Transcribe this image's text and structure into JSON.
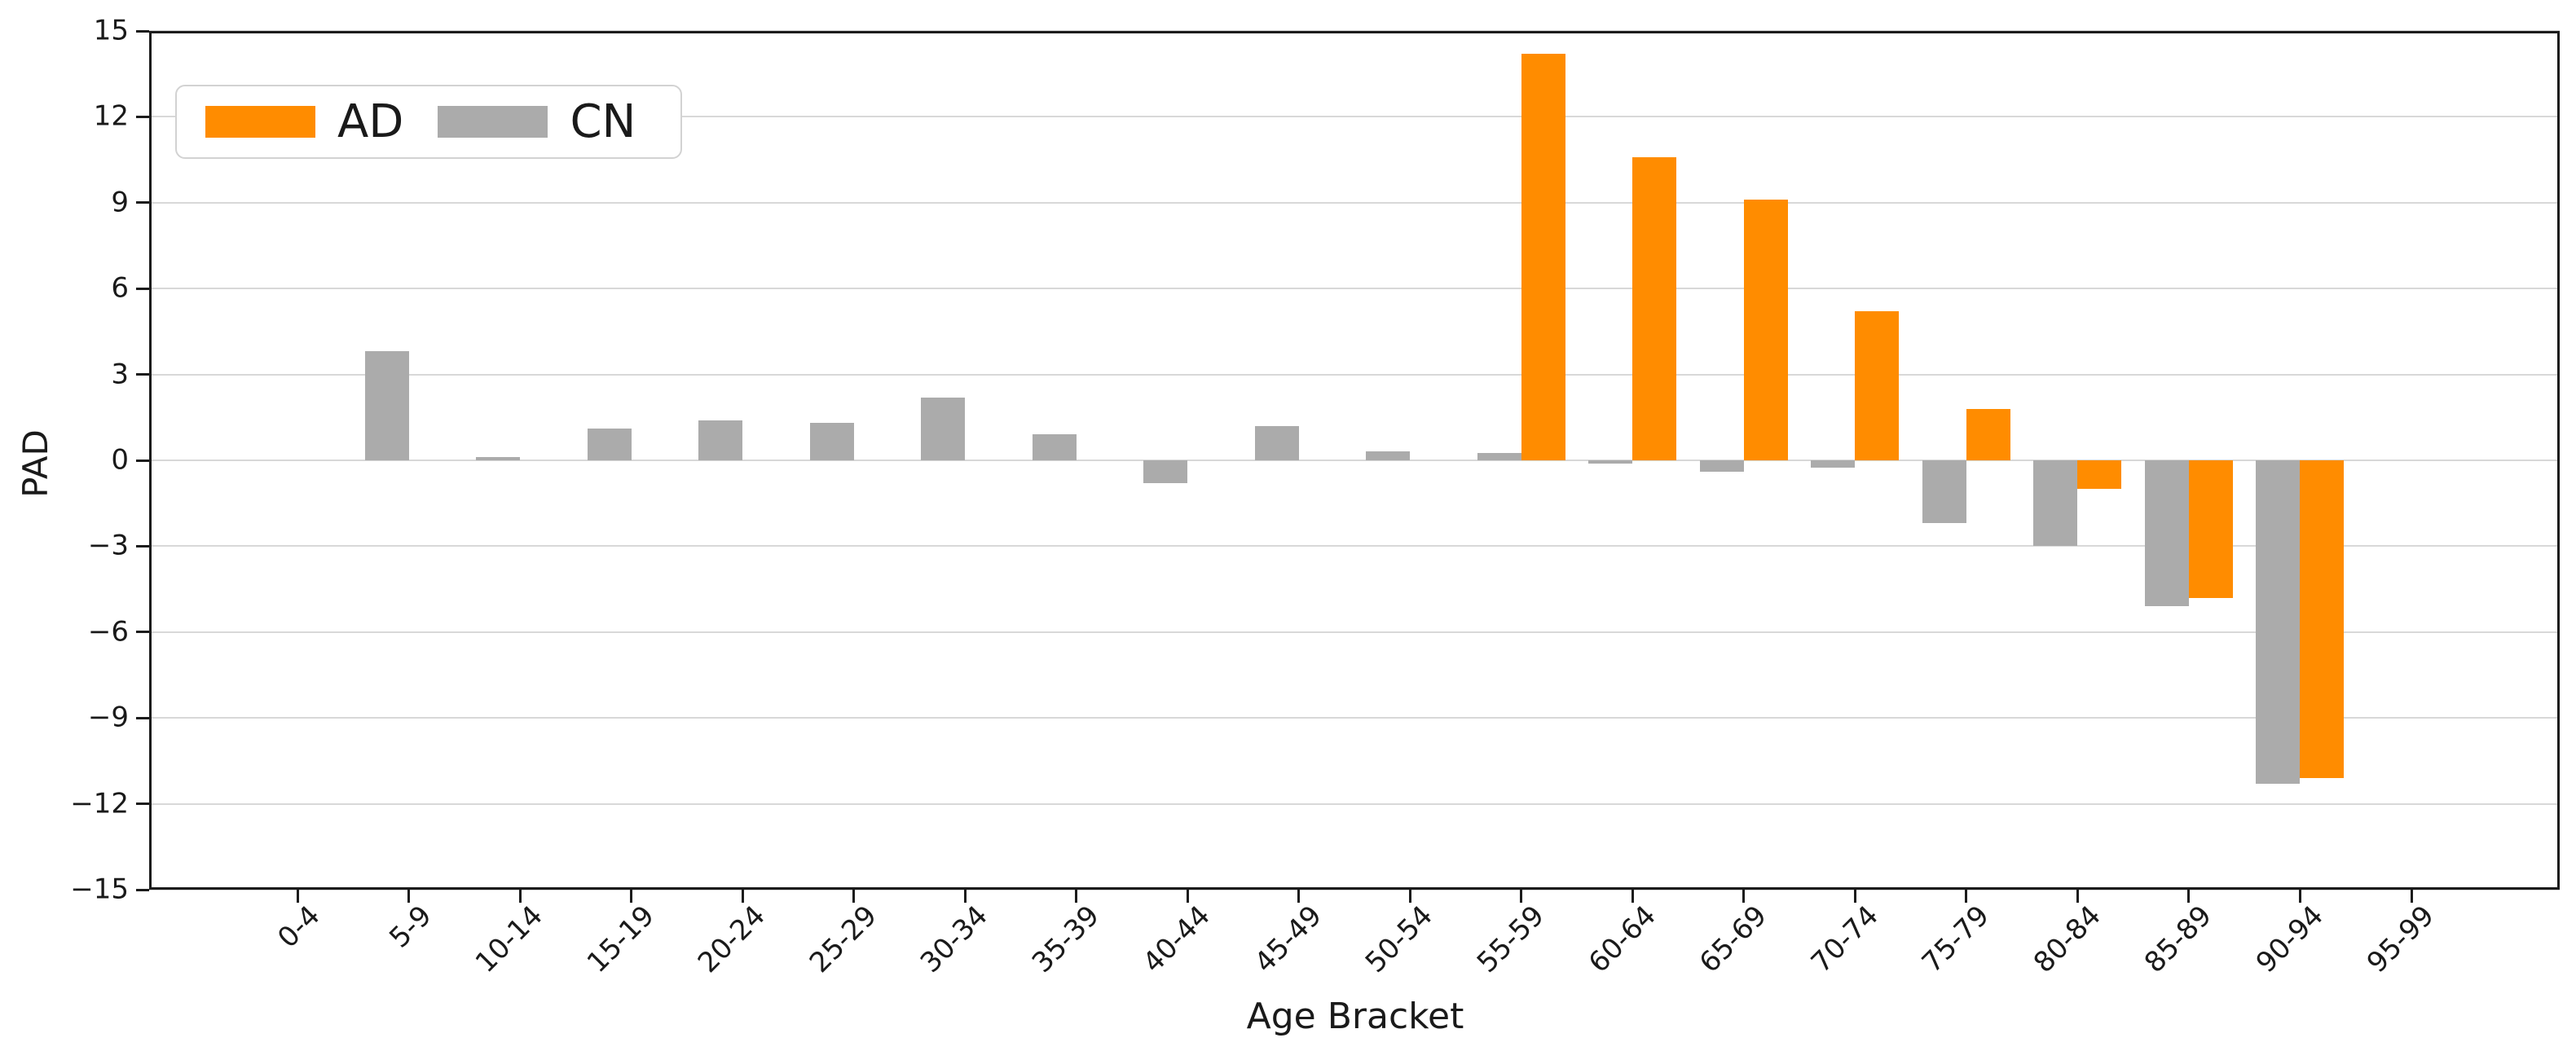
{
  "figure": {
    "xlabel": "Age Bracket",
    "ylabel": "PAD"
  },
  "chart_data": {
    "type": "bar",
    "title": "",
    "xlabel": "Age Bracket",
    "ylabel": "PAD",
    "categories": [
      "0-4",
      "5-9",
      "10-14",
      "15-19",
      "20-24",
      "25-29",
      "30-34",
      "35-39",
      "40-44",
      "45-49",
      "50-54",
      "55-59",
      "60-64",
      "65-69",
      "70-74",
      "75-79",
      "80-84",
      "85-89",
      "90-94",
      "95-99"
    ],
    "series": [
      {
        "name": "AD",
        "color": "#FF8C00",
        "values": [
          0,
          0,
          0,
          0,
          0,
          0,
          0,
          0,
          0,
          0,
          0,
          14.2,
          10.6,
          9.1,
          5.2,
          1.8,
          -1.0,
          -4.8,
          -11.1,
          0
        ]
      },
      {
        "name": "CN",
        "color": "#ABABAB",
        "values": [
          0,
          3.8,
          0.1,
          1.1,
          1.4,
          1.3,
          2.2,
          0.9,
          -0.8,
          1.2,
          0.3,
          0.25,
          -0.1,
          -0.4,
          -0.25,
          -2.2,
          -3.0,
          -5.1,
          -11.3,
          0
        ]
      }
    ],
    "bar_group_order": [
      "CN",
      "AD"
    ],
    "ylim": [
      -15,
      15
    ],
    "yticks": [
      15,
      12,
      9,
      6,
      3,
      0,
      -3,
      -6,
      -9,
      -12,
      -15
    ],
    "grid": true,
    "gridcolor": "#d8d8d8",
    "legend_position": "upper left"
  }
}
